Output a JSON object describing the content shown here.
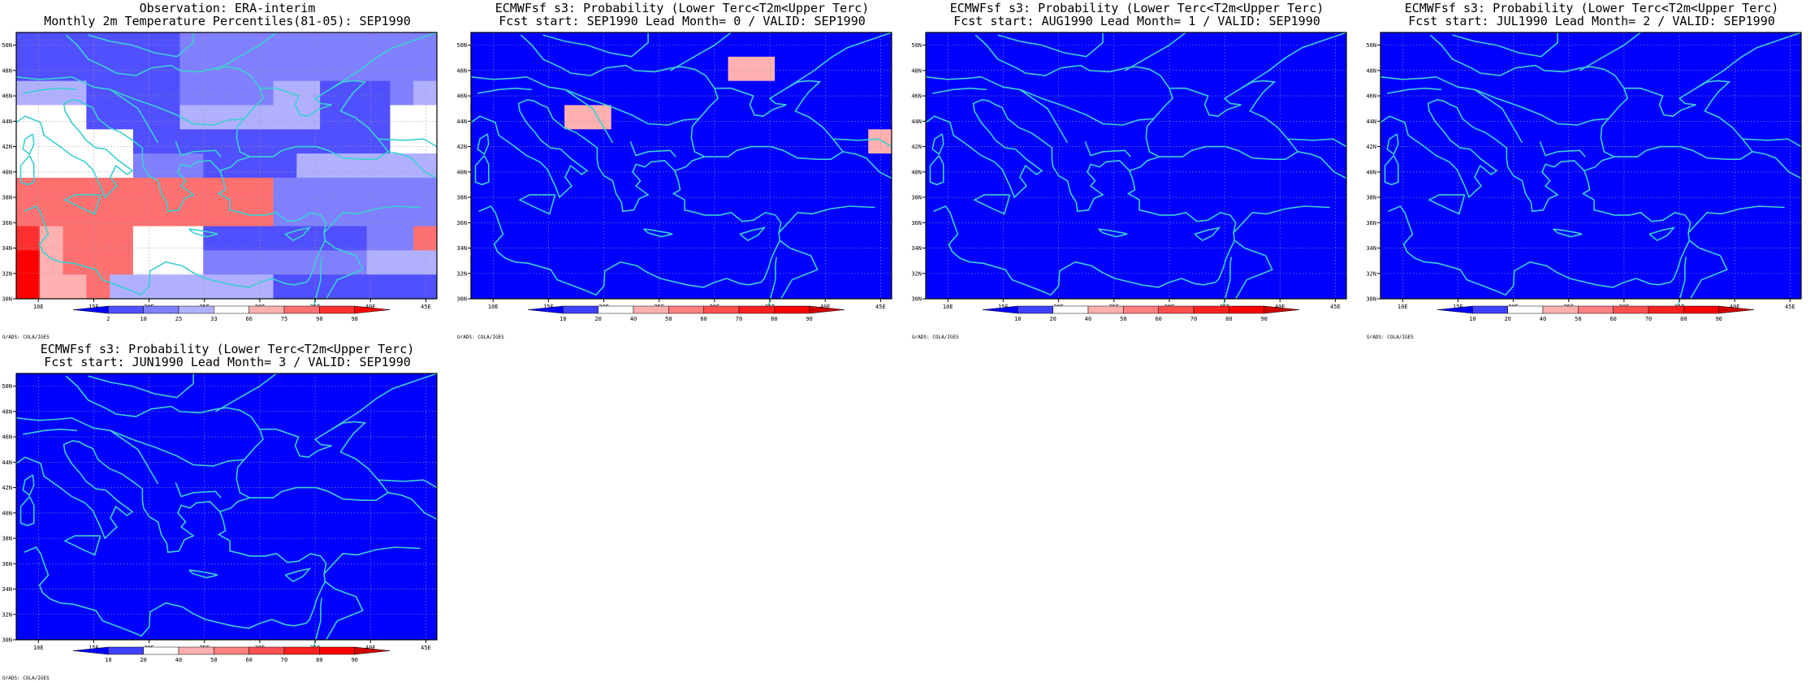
{
  "map_config": {
    "lon_range": [
      8,
      46
    ],
    "lat_range": [
      30,
      51
    ],
    "lon_ticks": [
      "10E",
      "15E",
      "20E",
      "25E",
      "30E",
      "35E",
      "40E",
      "45E"
    ],
    "lat_ticks": [
      "30N",
      "32N",
      "34N",
      "36N",
      "38N",
      "40N",
      "42N",
      "44N",
      "46N",
      "48N",
      "50N"
    ],
    "grid_lines": "dotted",
    "coastline_color": "#3ccfcf"
  },
  "legend_scales": {
    "observation": {
      "labels": [
        "2",
        "10",
        "25",
        "33",
        "66",
        "75",
        "90",
        "98"
      ],
      "colors": [
        "#0000ff",
        "#5050ff",
        "#8080ff",
        "#b0b0ff",
        "#ffffff",
        "#ffb0b0",
        "#ff7070",
        "#ff3030",
        "#ff0000"
      ]
    },
    "probability": {
      "labels": [
        "10",
        "20",
        "40",
        "50",
        "60",
        "70",
        "80",
        "90"
      ],
      "colors": [
        "#0000ff",
        "#4040ff",
        "#ffffff",
        "#ffb0b0",
        "#ff8080",
        "#ff5050",
        "#ff2020",
        "#ff0000",
        "#d00000"
      ]
    }
  },
  "chart_data": [
    {
      "type": "heatmap",
      "title_line1": "Observation: ERA-interim",
      "title_line2": "Monthly 2m Temperature Percentiles(81-05): SEP1990",
      "scale": "observation",
      "credit": "GrADS: COLA/IGES",
      "grid": [
        "111111122222222222",
        "111111122222222222",
        "333111122223311123",
        "444111133333311144",
        "444441111111111144",
        "444442221111333333",
        "666666666662222222",
        "666666666662222222",
        "756664441111111226",
        "856664442222222333",
        "855633333331111111"
      ]
    },
    {
      "type": "heatmap",
      "title_line1": "ECMWFsf s3: Probability (Lower Terc<T2m<Upper Terc)",
      "title_line2": "Fcst start: SEP1990   Lead Month= 0 / VALID: SEP1990",
      "scale": "probability",
      "credit": "GrADS: COLA/IGES",
      "grid": [
        "000000000000000000",
        "000000000003300000",
        "000000000000000000",
        "000033000000000000",
        "000000000000000003",
        "000000000000000000",
        "000000000000000000",
        "000000000000000000",
        "000000000000000000",
        "000000000000000000",
        "000000000000000000"
      ]
    },
    {
      "type": "heatmap",
      "title_line1": "ECMWFsf s3: Probability (Lower Terc<T2m<Upper Terc)",
      "title_line2": "Fcst start: AUG1990   Lead Month= 1 / VALID: SEP1990",
      "scale": "probability",
      "credit": "GrADS: COLA/IGES",
      "grid": [
        "000000000000000000",
        "000000000000000000",
        "000000000000000000",
        "000000000000000000",
        "000000000000000000",
        "000000000000000000",
        "000000000000000000",
        "000000000000000000",
        "000000000000000000",
        "000000000000000000",
        "000000000000000000"
      ]
    },
    {
      "type": "heatmap",
      "title_line1": "ECMWFsf s3: Probability (Lower Terc<T2m<Upper Terc)",
      "title_line2": "Fcst start: JUL1990   Lead Month= 2 / VALID: SEP1990",
      "scale": "probability",
      "credit": "GrADS: COLA/IGES",
      "grid": [
        "000000000000000000",
        "000000000000000000",
        "000000000000000000",
        "000000000000000000",
        "000000000000000000",
        "000000000000000000",
        "000000000000000000",
        "000000000000000000",
        "000000000000000000",
        "000000000000000000",
        "000000000000000000"
      ]
    },
    {
      "type": "heatmap",
      "title_line1": "ECMWFsf s3: Probability (Lower Terc<T2m<Upper Terc)",
      "title_line2": "Fcst start: JUN1990   Lead Month= 3 / VALID: SEP1990",
      "scale": "probability",
      "credit": "GrADS: COLA/IGES",
      "grid": [
        "000000000000000000",
        "000000000000000000",
        "000000000000000000",
        "000000000000000000",
        "000000000000000000",
        "000000000000000000",
        "000000000000000000",
        "000000000000000000",
        "000000000000000000",
        "000000000000000000",
        "000000000000000000"
      ]
    }
  ]
}
